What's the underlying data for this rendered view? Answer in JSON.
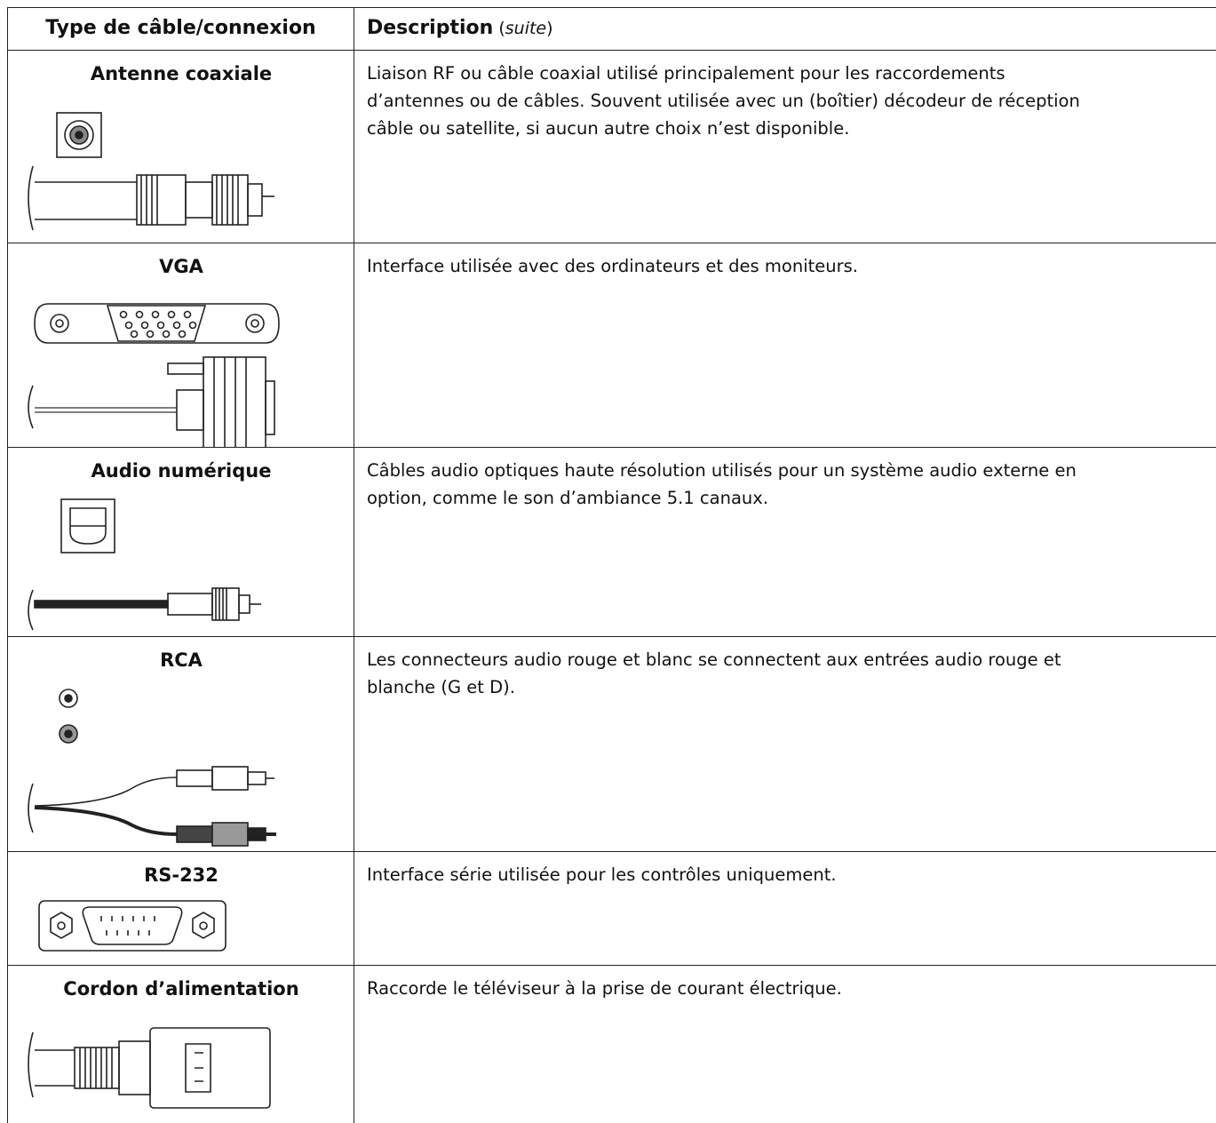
{
  "header": {
    "columns": [
      [
        {
          "text": "Type de câble/connexion"
        }
      ],
      [
        {
          "text": "Description"
        },
        {
          "text": " ("
        },
        {
          "text": "suite"
        },
        {
          "text": ")"
        }
      ]
    ]
  },
  "rows": [
    {
      "name": "Antenne coaxiale",
      "description": [
        "Liaison RF ou câble coaxial utilisé principalement pour les raccordements",
        "d’antennes ou de câbles. Souvent utilisée avec un (boîtier) décodeur de réception",
        "câble ou satellite, si aucun autre choix n’est disponible."
      ]
    },
    {
      "name": "VGA",
      "description": [
        "Interface utilisée avec des ordinateurs et des moniteurs."
      ]
    },
    {
      "name": "Audio numérique",
      "description": [
        "Câbles audio optiques haute résolution utilisés pour un système audio externe en",
        "option, comme le son d’ambiance 5.1 canaux."
      ]
    },
    {
      "name": "RCA",
      "description": [
        "Les connecteurs audio rouge et blanc se connectent aux entrées audio rouge et",
        "blanche (G et D)."
      ]
    },
    {
      "name": "RS-232",
      "description": [
        "Interface série utilisée pour les contrôles uniquement."
      ]
    },
    {
      "name": "Cordon d’alimentation",
      "description": [
        "Raccorde le téléviseur à la prise de courant électrique."
      ]
    }
  ]
}
